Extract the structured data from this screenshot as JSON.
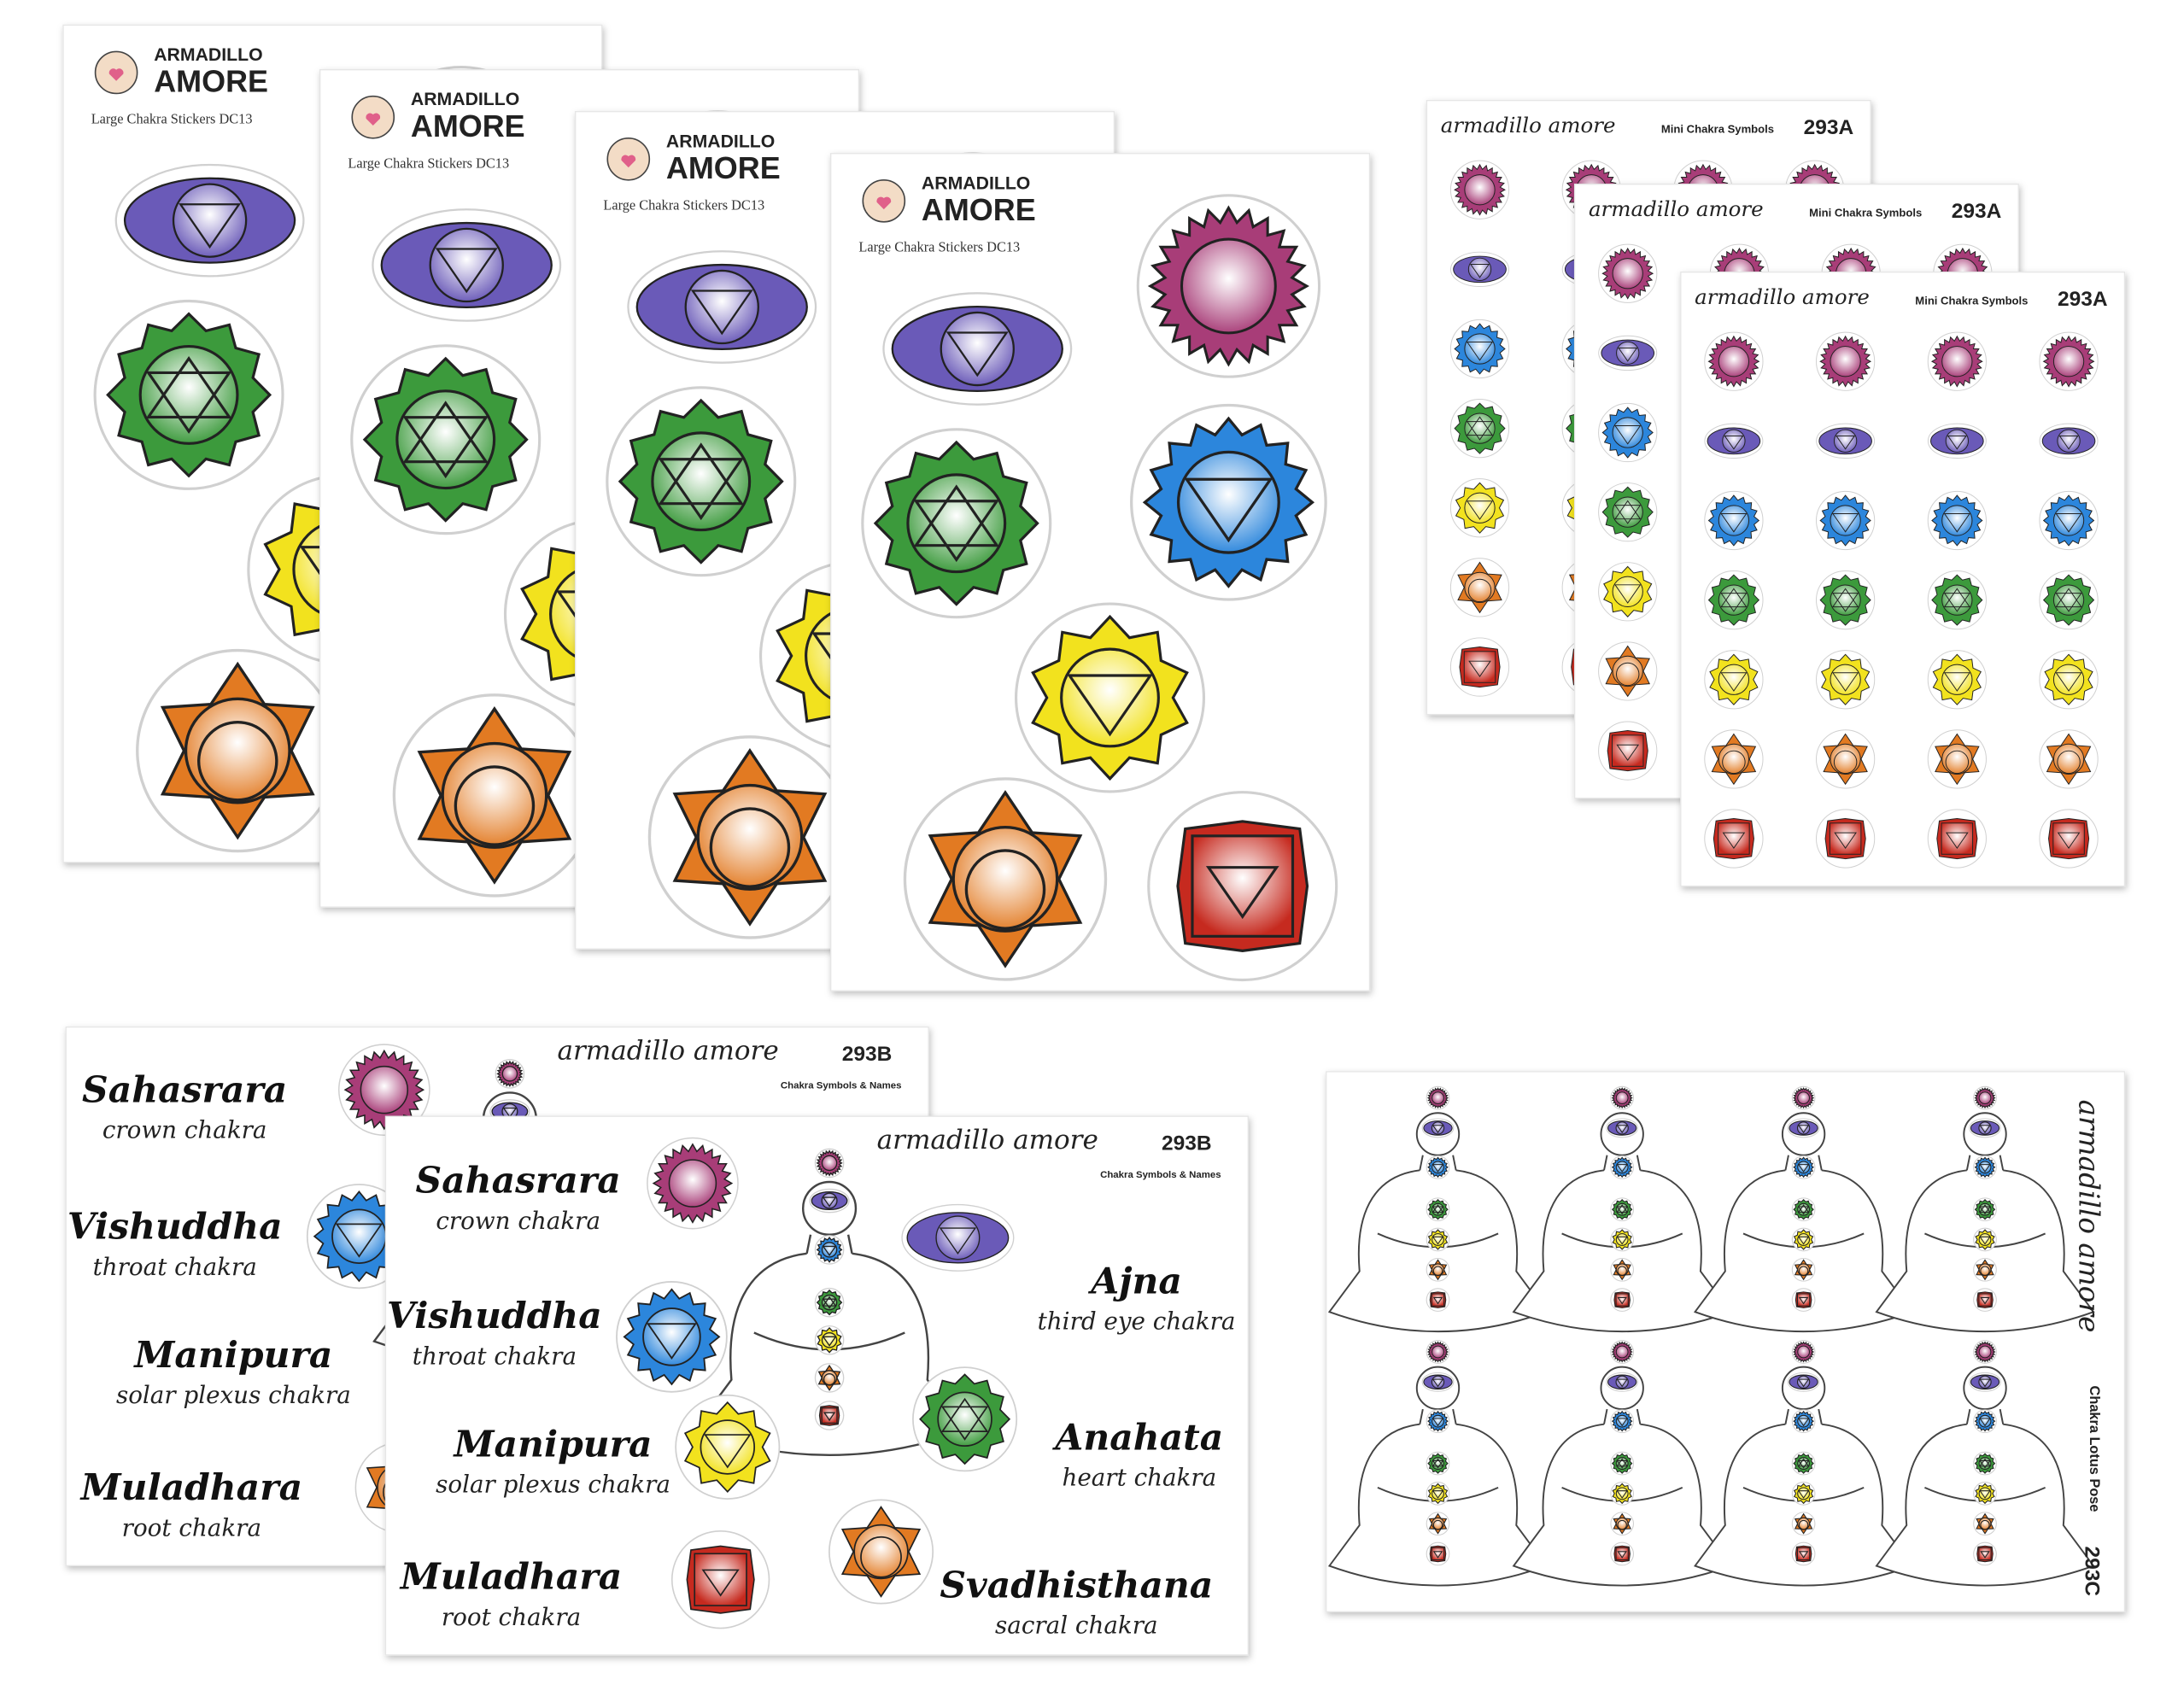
{
  "large_sheets": [
    {
      "brand_top": "ARMADILLO",
      "brand_bottom": "AMORE",
      "subtitle": "Large Chakra Stickers DC13"
    },
    {
      "brand_top": "ARMADILLO",
      "brand_bottom": "AMORE",
      "subtitle": "Large Chakra Stickers DC13"
    },
    {
      "brand_top": "ARMADILLO",
      "brand_bottom": "AMORE",
      "subtitle": "Large Chakra Stickers DC13"
    },
    {
      "brand_top": "ARMADILLO",
      "brand_bottom": "AMORE",
      "subtitle": "Large Chakra Stickers DC13"
    }
  ],
  "mini_sheets": [
    {
      "brand": "armadillo amore",
      "title": "Mini Chakra Symbols",
      "code": "293A"
    },
    {
      "brand": "armadillo amore",
      "title": "Mini Chakra Symbols",
      "code": "293A"
    },
    {
      "brand": "armadillo amore",
      "title": "Mini Chakra Symbols",
      "code": "293A"
    }
  ],
  "names_sheets": [
    {
      "brand": "armadillo amore",
      "code": "293B",
      "title": "Chakra Symbols & Names",
      "labels": [
        {
          "name": "Sahasrara",
          "subtitle": "crown chakra"
        },
        {
          "name": "Vishuddha",
          "subtitle": "throat chakra"
        },
        {
          "name": "Manipura",
          "subtitle": "solar plexus chakra"
        },
        {
          "name": "Muladhara",
          "subtitle": "root chakra"
        }
      ]
    },
    {
      "brand": "armadillo amore",
      "code": "293B",
      "title": "Chakra Symbols & Names",
      "labels": [
        {
          "name": "Sahasrara",
          "subtitle": "crown chakra"
        },
        {
          "name": "Vishuddha",
          "subtitle": "throat chakra"
        },
        {
          "name": "Manipura",
          "subtitle": "solar plexus chakra"
        },
        {
          "name": "Muladhara",
          "subtitle": "root chakra"
        },
        {
          "name": "Ajna",
          "subtitle": "third eye chakra"
        },
        {
          "name": "Anahata",
          "subtitle": "heart chakra"
        },
        {
          "name": "Svadhisthana",
          "subtitle": "sacral chakra"
        }
      ]
    }
  ],
  "lotus_sheet": {
    "brand": "armadillo amore",
    "title": "Chakra Lotus Pose",
    "code": "293C"
  }
}
